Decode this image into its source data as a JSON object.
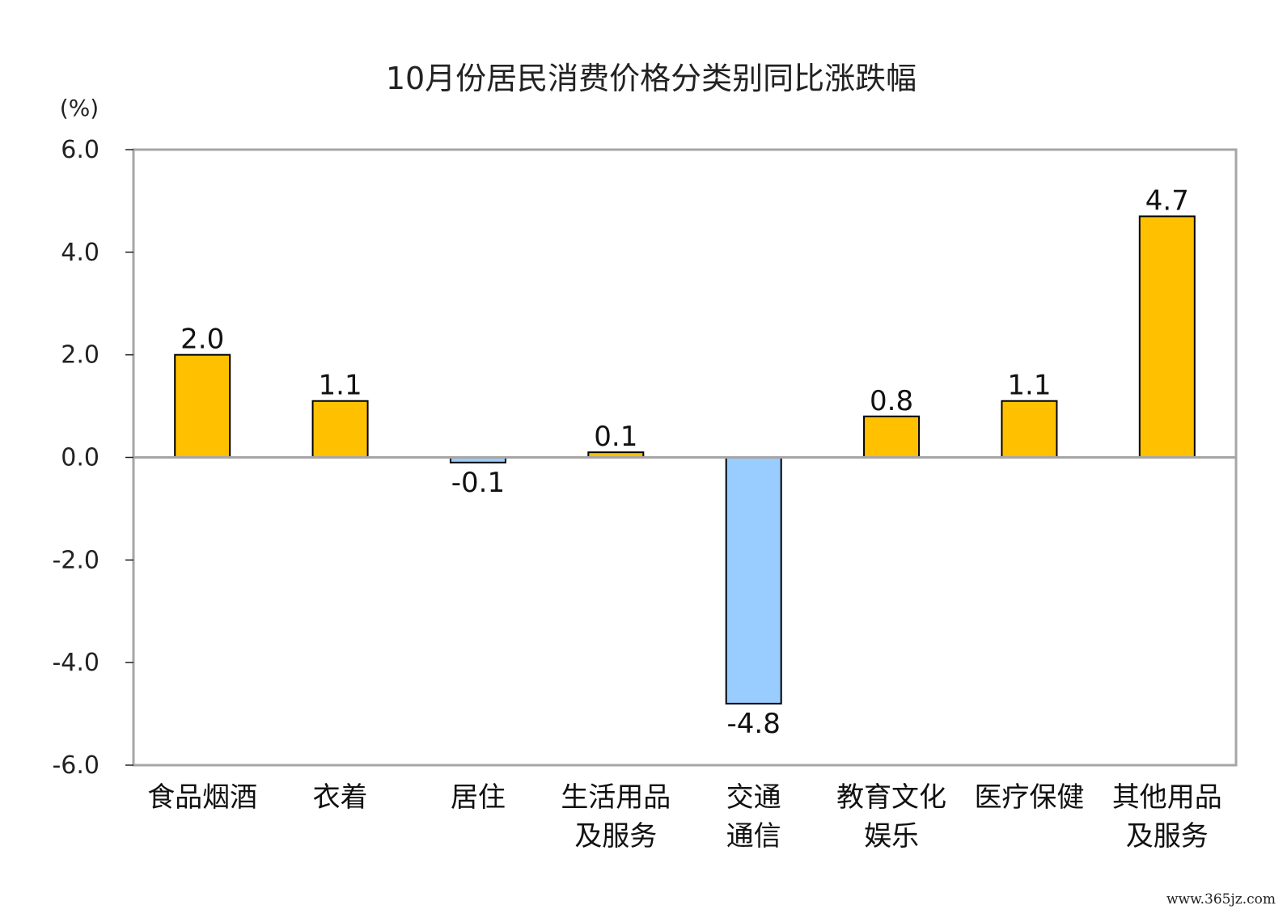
{
  "chart_data": {
    "type": "bar",
    "title": "10月份居民消费价格分类别同比涨跌幅",
    "unit_label": "(%)",
    "categories": [
      [
        "食品烟酒"
      ],
      [
        "衣着"
      ],
      [
        "居住"
      ],
      [
        "生活用品",
        "及服务"
      ],
      [
        "交通",
        "通信"
      ],
      [
        "教育文化",
        "娱乐"
      ],
      [
        "医疗保健"
      ],
      [
        "其他用品",
        "及服务"
      ]
    ],
    "values": [
      2.0,
      1.1,
      -0.1,
      0.1,
      -4.8,
      0.8,
      1.1,
      4.7
    ],
    "value_labels": [
      "2.0",
      "1.1",
      "-0.1",
      "0.1",
      "-4.8",
      "0.8",
      "1.1",
      "4.7"
    ],
    "ylim": [
      -6.0,
      6.0
    ],
    "yticks": [
      "6.0",
      "4.0",
      "2.0",
      "0.0",
      "-2.0",
      "-4.0",
      "-6.0"
    ],
    "ytick_values": [
      6,
      4,
      2,
      0,
      -2,
      -4,
      -6
    ],
    "grid": false,
    "colors": {
      "positive": "#FFC000",
      "negative": "#99CCFF",
      "bar_stroke": "#000000",
      "frame": "#A6A6A6"
    }
  },
  "watermark": "www.365jz.com"
}
